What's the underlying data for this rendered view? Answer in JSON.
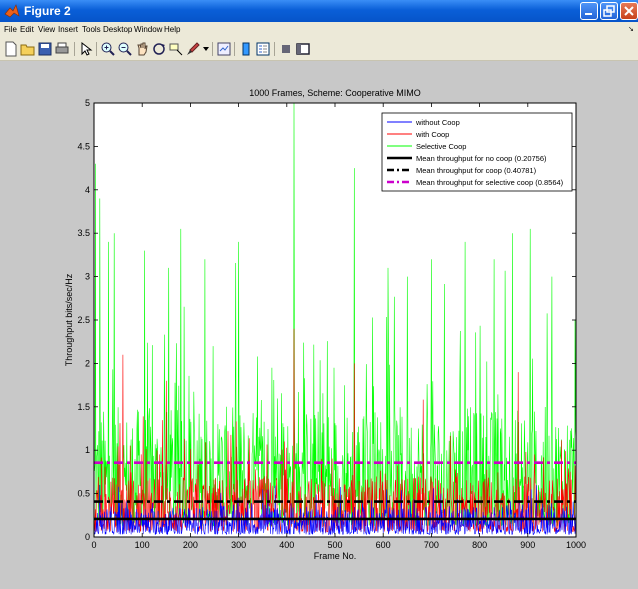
{
  "window": {
    "title": "Figure 2"
  },
  "menu": [
    "File",
    "Edit",
    "View",
    "Insert",
    "Tools",
    "Desktop",
    "Window",
    "Help"
  ],
  "toolbar": {
    "tools": [
      "new-figure-icon",
      "open-file-icon",
      "save-icon",
      "print-icon",
      "edit-plot-icon",
      "zoom-in-icon",
      "zoom-out-icon",
      "pan-icon",
      "rotate-3d-icon",
      "data-cursor-icon",
      "brush-icon",
      "link-plot-icon",
      "colorbar-icon",
      "legend-icon",
      "hide-plot-tools-icon",
      "show-plot-tools-icon"
    ]
  },
  "colors": {
    "titlebar": "#0a5fd8",
    "figure_bg": "#c8c8c8",
    "without_coop": "#0000ff",
    "with_coop": "#ff0000",
    "selective_coop": "#00ff00",
    "mean_no_coop": "#000000",
    "mean_coop": "#000000",
    "mean_selective": "#cc00cc"
  },
  "chart_data": {
    "type": "line",
    "title": "1000 Frames, Scheme: Cooperative MIMO",
    "xlabel": "Frame No.",
    "ylabel": "Throughput bits/sec/Hz",
    "xlim": [
      0,
      1000
    ],
    "ylim": [
      0,
      5
    ],
    "xticks": [
      0,
      100,
      200,
      300,
      400,
      500,
      600,
      700,
      800,
      900,
      1000
    ],
    "yticks": [
      0,
      0.5,
      1,
      1.5,
      2,
      2.5,
      3,
      3.5,
      4,
      4.5,
      5
    ],
    "xtick_labels": [
      "0",
      "100",
      "200",
      "300",
      "400",
      "500",
      "600",
      "700",
      "800",
      "900",
      "1000"
    ],
    "ytick_labels": [
      "0",
      "0.5",
      "1",
      "1.5",
      "2",
      "2.5",
      "3",
      "3.5",
      "4",
      "4.5",
      "5"
    ],
    "legend_position": "top-right",
    "series": [
      {
        "name": "without Coop",
        "style": "thin",
        "color": "#0000ff",
        "mean": 0.2,
        "spread": 0.3,
        "peaks": [
          [
            12,
            0.6
          ],
          [
            350,
            0.55
          ],
          [
            720,
            0.5
          ]
        ]
      },
      {
        "name": "with Coop",
        "style": "thin",
        "color": "#ff0000",
        "mean": 0.4,
        "spread": 0.9,
        "peaks": [
          [
            60,
            2.1
          ],
          [
            150,
            1.8
          ],
          [
            415,
            2.4
          ],
          [
            540,
            2.0
          ],
          [
            880,
            1.9
          ]
        ]
      },
      {
        "name": "Selective Coop",
        "style": "thin",
        "color": "#00ff00",
        "mean": 0.86,
        "spread": 1.9,
        "peaks": [
          [
            3,
            4.3
          ],
          [
            12,
            3.9
          ],
          [
            30,
            3.4
          ],
          [
            42,
            3.5
          ],
          [
            105,
            3.3
          ],
          [
            155,
            3.1
          ],
          [
            180,
            3.55
          ],
          [
            230,
            3.2
          ],
          [
            300,
            3.4
          ],
          [
            415,
            5.0
          ],
          [
            540,
            4.25
          ],
          [
            610,
            3.1
          ],
          [
            650,
            3.0
          ],
          [
            700,
            3.2
          ],
          [
            770,
            3.4
          ],
          [
            830,
            3.2
          ],
          [
            868,
            3.5
          ],
          [
            905,
            3.55
          ],
          [
            950,
            3.0
          ],
          [
            998,
            2.5
          ]
        ]
      },
      {
        "name": "Mean throughput for no coop (0.20756)",
        "style": "solid-thick",
        "color": "#000000",
        "value": 0.20756
      },
      {
        "name": "Mean throughput for coop (0.40781)",
        "style": "dashdot-thick",
        "color": "#000000",
        "value": 0.40781
      },
      {
        "name": "Mean throughput for selective coop (0.8564)",
        "style": "dashdot-thick",
        "color": "#cc00cc",
        "value": 0.8564
      }
    ]
  }
}
